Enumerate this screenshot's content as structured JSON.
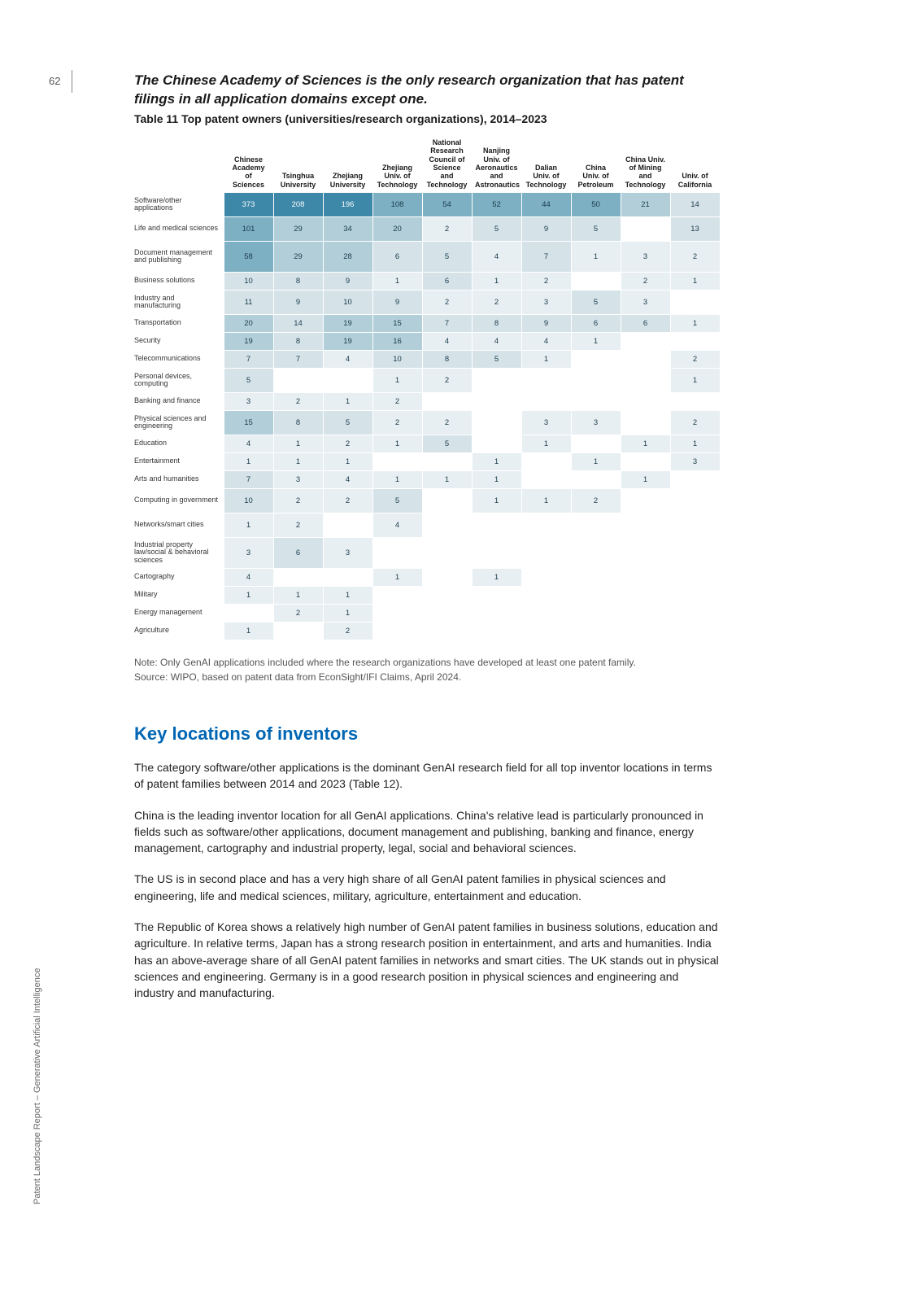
{
  "page_number": "62",
  "sideways_title": "Patent Landscape Report – Generative Artificial Intelligence",
  "lead_sentence": "The Chinese Academy of Sciences is the only research organization that has patent filings in all application domains except one.",
  "table_title": "Table 11 Top patent owners (universities/research organizations), 2014–2023",
  "column_headers": [
    "Chinese Academy of Sciences",
    "Tsinghua University",
    "Zhejiang University",
    "Zhejiang Univ. of Technology",
    "National Research Council of Science and Technology",
    "Nanjing Univ. of Aeronautics and Astronautics",
    "Dalian Univ. of Technology",
    "China Univ. of Petroleum",
    "China Univ. of Mining and Technology",
    "Univ. of California"
  ],
  "row_labels": [
    "Software/other applications",
    "Life and medical sciences",
    "Document management and publishing",
    "Business solutions",
    "Industry and manufacturing",
    "Transportation",
    "Security",
    "Telecommunications",
    "Personal devices, computing",
    "Banking and finance",
    "Physical sciences and engineering",
    "Education",
    "Entertainment",
    "Arts and humanities",
    "Computing in government",
    "Networks/smart cities",
    "Industrial property law/social & behavioral sciences",
    "Cartography",
    "Military",
    "Energy management",
    "Agriculture"
  ],
  "row_heights": [
    "tall",
    "tall",
    "xtall",
    "",
    "tall",
    "",
    "",
    "",
    "tall",
    "",
    "tall",
    "",
    "",
    "",
    "tall",
    "tall",
    "xtall",
    "",
    "",
    "",
    ""
  ],
  "cells": [
    [
      373,
      208,
      196,
      108,
      54,
      52,
      44,
      50,
      21,
      14
    ],
    [
      101,
      29,
      34,
      20,
      2,
      5,
      9,
      5,
      null,
      13
    ],
    [
      58,
      29,
      28,
      6,
      5,
      4,
      7,
      1,
      3,
      2
    ],
    [
      10,
      8,
      9,
      1,
      6,
      1,
      2,
      null,
      2,
      1
    ],
    [
      11,
      9,
      10,
      9,
      2,
      2,
      3,
      5,
      3,
      null
    ],
    [
      20,
      14,
      19,
      15,
      7,
      8,
      9,
      6,
      6,
      1
    ],
    [
      19,
      8,
      19,
      16,
      4,
      4,
      4,
      1,
      null,
      null
    ],
    [
      7,
      7,
      4,
      10,
      8,
      5,
      1,
      null,
      null,
      2
    ],
    [
      5,
      null,
      null,
      1,
      2,
      null,
      null,
      null,
      null,
      1
    ],
    [
      3,
      2,
      1,
      2,
      null,
      null,
      null,
      null,
      null,
      null
    ],
    [
      15,
      8,
      5,
      2,
      2,
      null,
      3,
      3,
      null,
      2
    ],
    [
      4,
      1,
      2,
      1,
      5,
      null,
      1,
      null,
      1,
      1
    ],
    [
      1,
      1,
      1,
      null,
      null,
      1,
      null,
      1,
      null,
      3
    ],
    [
      7,
      3,
      4,
      1,
      1,
      1,
      null,
      null,
      1,
      null
    ],
    [
      10,
      2,
      2,
      5,
      null,
      1,
      1,
      2,
      null,
      null
    ],
    [
      1,
      2,
      null,
      4,
      null,
      null,
      null,
      null,
      null,
      null
    ],
    [
      3,
      6,
      3,
      null,
      null,
      null,
      null,
      null,
      null,
      null
    ],
    [
      4,
      null,
      null,
      1,
      null,
      1,
      null,
      null,
      null,
      null
    ],
    [
      1,
      1,
      1,
      null,
      null,
      null,
      null,
      null,
      null,
      null
    ],
    [
      null,
      2,
      1,
      null,
      null,
      null,
      null,
      null,
      null,
      null
    ],
    [
      1,
      null,
      2,
      null,
      null,
      null,
      null,
      null,
      null,
      null
    ]
  ],
  "heatmap_colors": {
    "max": "#3d87a8",
    "mid_high": "#7db0c3",
    "mid": "#b2cfd9",
    "mid_low": "#d5e3e9",
    "low": "#e8eff2",
    "empty": "#ffffff"
  },
  "cell_font_color": "#1a3a4a",
  "cell_font_size": 9.5,
  "header_font_size": 9,
  "note_line1": "Note: Only GenAI applications included where the research organizations have developed at least one patent family.",
  "note_line2": "Source: WIPO, based on patent data from EconSight/IFI Claims, April 2024.",
  "section_heading": "Key locations of inventors",
  "body_paragraphs": [
    "The category software/other applications is the dominant GenAI research field for all top inventor locations in terms of patent families between 2014 and 2023 (Table 12).",
    "China is the leading inventor location for all GenAI applications. China's relative lead is particularly pronounced in fields such as software/other applications, document management and publishing, banking and finance, energy management, cartography and industrial property, legal, social and behavioral sciences.",
    "The US is in second place and has a very high share of all GenAI patent families in physical sciences and engineering, life and medical sciences, military, agriculture, entertainment and education.",
    "The Republic of Korea shows a relatively high number of GenAI patent families in business solutions, education and agriculture. In relative terms, Japan has a strong research position in entertainment, and arts and humanities. India has an above-average share of all GenAI patent families in networks and smart cities. The UK stands out in physical sciences and engineering. Germany is in a good research position in physical sciences and engineering and industry and manufacturing."
  ],
  "body_font_size": 14,
  "heading_color": "#0066b3",
  "heading_font_size": 22
}
